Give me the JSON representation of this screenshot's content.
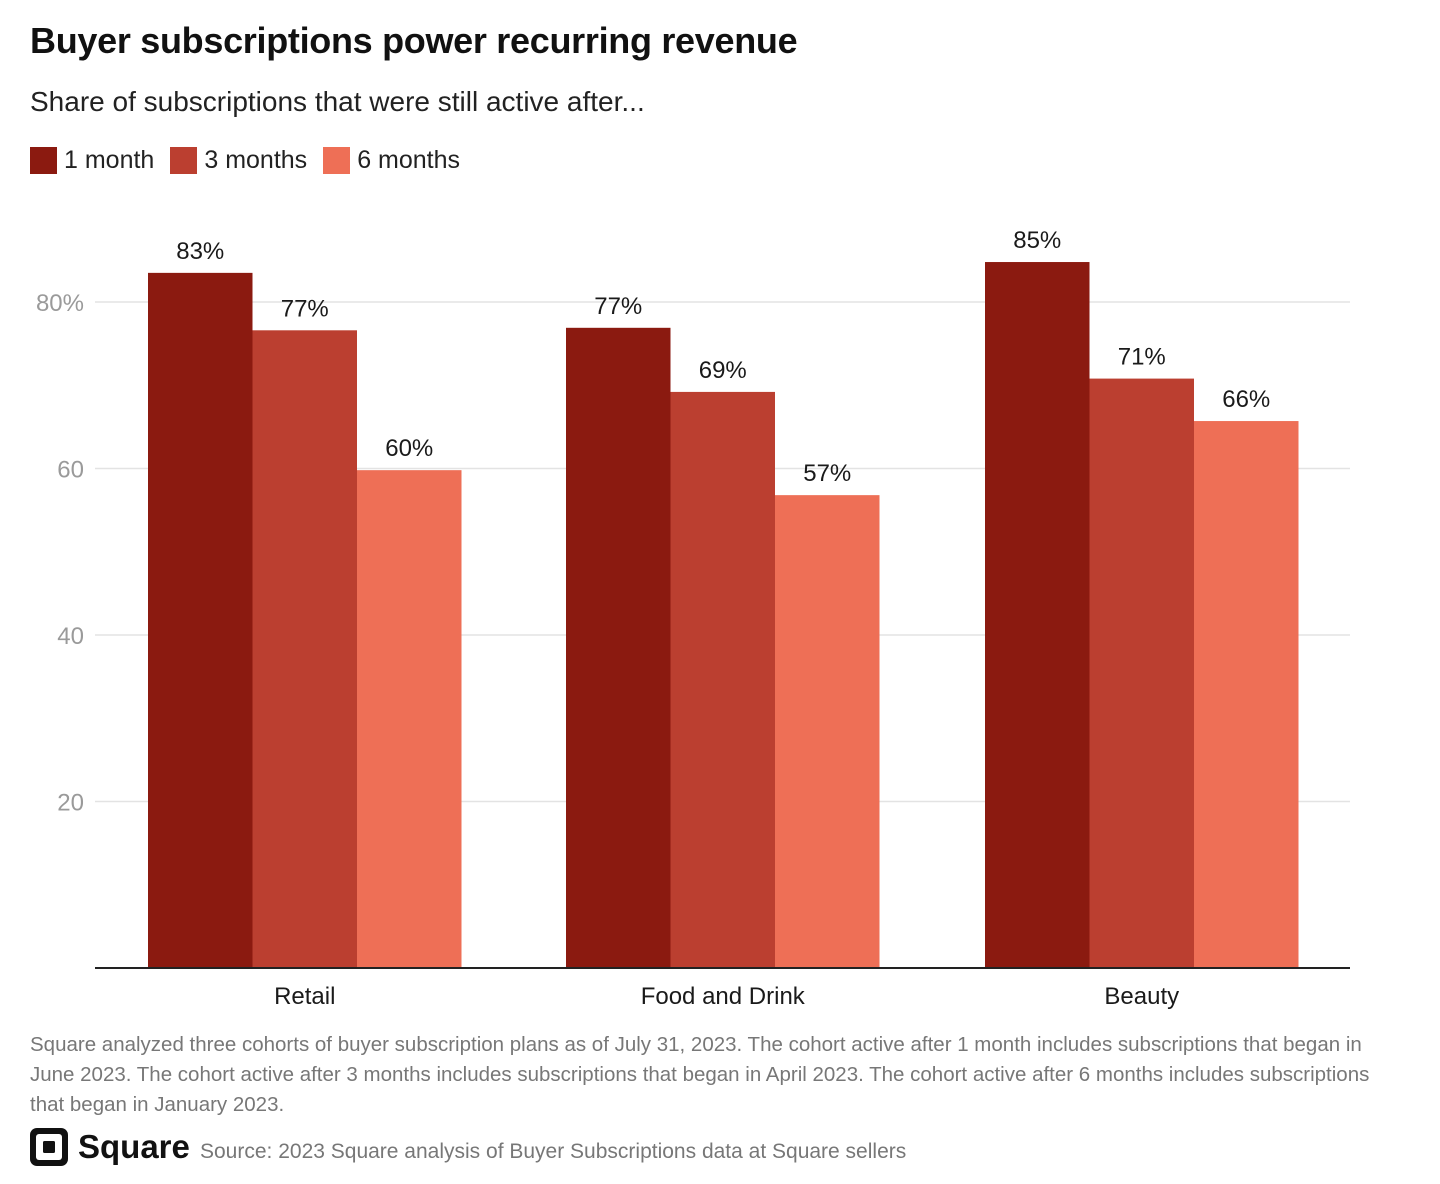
{
  "header": {
    "title": "Buyer subscriptions power recurring revenue",
    "subtitle": "Share of subscriptions that were still active after..."
  },
  "colors": {
    "1 month": "#8b1a10",
    "3 months": "#bb3f30",
    "6 months": "#ee6f56",
    "grid": "#e3e3e3",
    "axis": "#222222",
    "tick": "#9a9a9a"
  },
  "chart_data": {
    "type": "bar",
    "categories": [
      "Retail",
      "Food and Drink",
      "Beauty"
    ],
    "series": [
      {
        "name": "1 month",
        "values": [
          83.5,
          76.9,
          84.8
        ],
        "labels": [
          "83%",
          "77%",
          "85%"
        ]
      },
      {
        "name": "3 months",
        "values": [
          76.6,
          69.2,
          70.8
        ],
        "labels": [
          "77%",
          "69%",
          "71%"
        ]
      },
      {
        "name": "6 months",
        "values": [
          59.8,
          56.8,
          65.7
        ],
        "labels": [
          "60%",
          "57%",
          "66%"
        ]
      }
    ],
    "yticks": [
      20,
      40,
      60,
      80
    ],
    "ytick_labels": [
      "20",
      "40",
      "60",
      "80%"
    ],
    "ylim": [
      0,
      100
    ],
    "grid": true,
    "legend": "top-left"
  },
  "footer": {
    "note": "Square analyzed three cohorts of buyer subscription plans as of July 31, 2023. The cohort active after 1 month includes subscriptions that began in June 2023. The cohort active after 3 months includes subscriptions that began in April 2023. The cohort active after 6 months includes subscriptions that began in January 2023.",
    "brand": "Square",
    "source": "Source: 2023 Square analysis of Buyer Subscriptions data at Square sellers"
  }
}
